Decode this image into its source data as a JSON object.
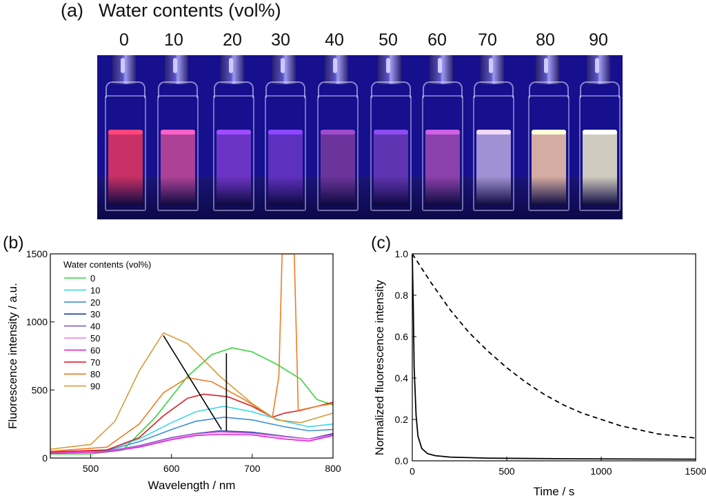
{
  "panel_a": {
    "label": "(a)",
    "title": "Water contents (vol%)",
    "water_labels": [
      "0",
      "10",
      "20",
      "30",
      "40",
      "50",
      "60",
      "70",
      "80",
      "90"
    ],
    "vial_colors": [
      "#e8355f",
      "#c84a9a",
      "#7a3acf",
      "#6b36c8",
      "#7a3a9e",
      "#6c3ab8",
      "#a04ab0",
      "#b9a7e0",
      "#f6c7a8",
      "#f1ecc9"
    ]
  },
  "chart_data": [
    {
      "panel": "(b)",
      "type": "line",
      "xlabel": "Wavelength / nm",
      "ylabel": "Fluorescence intensity / a.u.",
      "xlim": [
        450,
        800
      ],
      "ylim": [
        0,
        1500
      ],
      "xticks": [
        "500",
        "600",
        "700",
        "800"
      ],
      "yticks": [
        "0",
        "500",
        "1000",
        "1500"
      ],
      "legend_title": "Water contents (vol%)",
      "legend_position": "top-left",
      "annotations": [
        "arrow from 90 vol% peak (~590 nm, ~900) down to ~660 nm, ~200",
        "vertical line at ~670 nm from ~190 to ~770"
      ],
      "series": [
        {
          "name": "0",
          "color": "#37d43a",
          "peak_nm": 675,
          "peak_intensity": 810,
          "points": [
            [
              450,
              30
            ],
            [
              500,
              30
            ],
            [
              540,
              60
            ],
            [
              580,
              300
            ],
            [
              620,
              600
            ],
            [
              650,
              760
            ],
            [
              675,
              810
            ],
            [
              700,
              780
            ],
            [
              730,
              690
            ],
            [
              760,
              580
            ],
            [
              780,
              430
            ],
            [
              800,
              390
            ]
          ]
        },
        {
          "name": "10",
          "color": "#38d7e8",
          "peak_nm": 665,
          "peak_intensity": 380,
          "points": [
            [
              450,
              40
            ],
            [
              520,
              60
            ],
            [
              560,
              140
            ],
            [
              600,
              260
            ],
            [
              630,
              340
            ],
            [
              665,
              380
            ],
            [
              700,
              340
            ],
            [
              740,
              270
            ],
            [
              770,
              230
            ],
            [
              800,
              250
            ]
          ]
        },
        {
          "name": "20",
          "color": "#3c8fd0",
          "peak_nm": 665,
          "peak_intensity": 300,
          "points": [
            [
              450,
              40
            ],
            [
              520,
              55
            ],
            [
              560,
              120
            ],
            [
              600,
              210
            ],
            [
              630,
              270
            ],
            [
              665,
              300
            ],
            [
              700,
              280
            ],
            [
              740,
              230
            ],
            [
              770,
              200
            ],
            [
              800,
              210
            ]
          ]
        },
        {
          "name": "30",
          "color": "#223a9c",
          "peak_nm": 660,
          "peak_intensity": 200,
          "points": [
            [
              450,
              40
            ],
            [
              520,
              50
            ],
            [
              560,
              90
            ],
            [
              600,
              150
            ],
            [
              630,
              180
            ],
            [
              660,
              200
            ],
            [
              700,
              190
            ],
            [
              740,
              160
            ],
            [
              770,
              140
            ],
            [
              800,
              180
            ]
          ]
        },
        {
          "name": "40",
          "color": "#7a5ac8",
          "peak_nm": 660,
          "peak_intensity": 195,
          "points": [
            [
              450,
              40
            ],
            [
              520,
              50
            ],
            [
              560,
              88
            ],
            [
              600,
              148
            ],
            [
              630,
              178
            ],
            [
              660,
              195
            ],
            [
              700,
              185
            ],
            [
              740,
              158
            ],
            [
              770,
              140
            ],
            [
              800,
              175
            ]
          ]
        },
        {
          "name": "50",
          "color": "#e97de6",
          "peak_nm": 660,
          "peak_intensity": 190,
          "points": [
            [
              450,
              40
            ],
            [
              520,
              48
            ],
            [
              560,
              85
            ],
            [
              600,
              145
            ],
            [
              630,
              175
            ],
            [
              660,
              190
            ],
            [
              700,
              180
            ],
            [
              740,
              155
            ],
            [
              770,
              138
            ],
            [
              800,
              170
            ]
          ]
        },
        {
          "name": "60",
          "color": "#e51fd8",
          "peak_nm": 660,
          "peak_intensity": 175,
          "points": [
            [
              450,
              35
            ],
            [
              520,
              45
            ],
            [
              560,
              80
            ],
            [
              600,
              135
            ],
            [
              630,
              165
            ],
            [
              660,
              175
            ],
            [
              700,
              170
            ],
            [
              740,
              140
            ],
            [
              770,
              125
            ],
            [
              800,
              165
            ]
          ]
        },
        {
          "name": "70",
          "color": "#dc1e2a",
          "peak_nm": 640,
          "peak_intensity": 470,
          "points": [
            [
              450,
              45
            ],
            [
              520,
              60
            ],
            [
              560,
              150
            ],
            [
              590,
              310
            ],
            [
              620,
              440
            ],
            [
              640,
              470
            ],
            [
              670,
              450
            ],
            [
              700,
              380
            ],
            [
              725,
              300
            ],
            [
              740,
              330
            ],
            [
              760,
              350
            ],
            [
              780,
              380
            ],
            [
              800,
              410
            ]
          ]
        },
        {
          "name": "80",
          "color": "#ee7a22",
          "peak_nm": 620,
          "peak_intensity": 590,
          "points": [
            [
              450,
              50
            ],
            [
              520,
              80
            ],
            [
              560,
              250
            ],
            [
              590,
              480
            ],
            [
              620,
              590
            ],
            [
              650,
              560
            ],
            [
              690,
              430
            ],
            [
              725,
              300
            ],
            [
              733,
              600
            ],
            [
              737,
              1500
            ],
            [
              752,
              1500
            ],
            [
              757,
              350
            ],
            [
              780,
              380
            ],
            [
              800,
              400
            ]
          ]
        },
        {
          "name": "90",
          "color": "#d89a3a",
          "peak_nm": 590,
          "peak_intensity": 920,
          "points": [
            [
              450,
              65
            ],
            [
              500,
              100
            ],
            [
              530,
              270
            ],
            [
              560,
              640
            ],
            [
              590,
              920
            ],
            [
              620,
              840
            ],
            [
              660,
              600
            ],
            [
              700,
              400
            ],
            [
              730,
              280
            ],
            [
              760,
              260
            ],
            [
              800,
              330
            ]
          ]
        }
      ]
    },
    {
      "panel": "(c)",
      "type": "line",
      "xlabel": "Time / s",
      "ylabel": "Normalized fluorescence intensity",
      "xlim": [
        0,
        1500
      ],
      "ylim": [
        0,
        1.0
      ],
      "xticks": [
        "0",
        "500",
        "1000",
        "1500"
      ],
      "yticks": [
        "0.0",
        "0.2",
        "0.4",
        "0.6",
        "0.8",
        "1.0"
      ],
      "series": [
        {
          "name": "solid",
          "style": "solid",
          "points": [
            [
              0,
              1.0
            ],
            [
              5,
              0.75
            ],
            [
              10,
              0.45
            ],
            [
              20,
              0.22
            ],
            [
              30,
              0.12
            ],
            [
              50,
              0.06
            ],
            [
              80,
              0.035
            ],
            [
              120,
              0.025
            ],
            [
              200,
              0.018
            ],
            [
              400,
              0.013
            ],
            [
              800,
              0.01
            ],
            [
              1500,
              0.008
            ]
          ]
        },
        {
          "name": "dashed",
          "style": "dashed",
          "points": [
            [
              0,
              1.0
            ],
            [
              100,
              0.86
            ],
            [
              200,
              0.73
            ],
            [
              300,
              0.62
            ],
            [
              400,
              0.53
            ],
            [
              500,
              0.45
            ],
            [
              600,
              0.38
            ],
            [
              700,
              0.32
            ],
            [
              800,
              0.27
            ],
            [
              900,
              0.23
            ],
            [
              1000,
              0.2
            ],
            [
              1100,
              0.17
            ],
            [
              1200,
              0.15
            ],
            [
              1300,
              0.13
            ],
            [
              1400,
              0.12
            ],
            [
              1500,
              0.11
            ]
          ]
        }
      ]
    }
  ]
}
